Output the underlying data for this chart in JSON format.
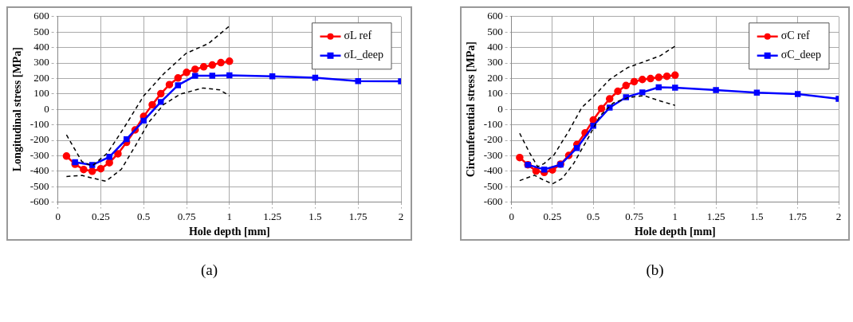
{
  "chart_data": [
    {
      "type": "line",
      "xlabel": "Hole depth [mm]",
      "ylabel": "Longitudinal stress [MPa]",
      "xlim": [
        0,
        2
      ],
      "xticks": [
        0,
        0.25,
        0.5,
        0.75,
        1,
        1.25,
        1.5,
        1.75,
        2
      ],
      "ylim": [
        -600,
        600
      ],
      "yticks": [
        -600,
        -500,
        -400,
        -300,
        -200,
        -100,
        0,
        100,
        200,
        300,
        400,
        500,
        600
      ],
      "grid": true,
      "legend": "top right",
      "annotations": [
        "(a)"
      ],
      "series": [
        {
          "name": "σL ref",
          "color": "#ff0000",
          "marker": "circle",
          "x": [
            0.05,
            0.1,
            0.15,
            0.2,
            0.25,
            0.3,
            0.35,
            0.4,
            0.45,
            0.5,
            0.55,
            0.6,
            0.65,
            0.7,
            0.75,
            0.8,
            0.85,
            0.9,
            0.95,
            1.0
          ],
          "values": [
            -302,
            -355,
            -389,
            -400,
            -384,
            -345,
            -287,
            -213,
            -133,
            -46,
            30,
            101,
            160,
            203,
            239,
            259,
            275,
            287,
            302,
            311
          ]
        },
        {
          "name": "σL_deep",
          "color": "#0000ff",
          "marker": "square",
          "x": [
            0.1,
            0.2,
            0.3,
            0.4,
            0.5,
            0.6,
            0.7,
            0.8,
            0.9,
            1.0,
            1.25,
            1.5,
            1.75,
            2.0
          ],
          "values": [
            -342,
            -360,
            -307,
            -193,
            -73,
            48,
            156,
            217,
            218,
            220,
            214,
            205,
            183,
            181
          ]
        },
        {
          "color": "#000000",
          "marker": "none",
          "line_style": "dashed",
          "x": [
            0.05,
            0.14,
            0.2,
            0.29,
            0.39,
            0.5,
            0.615,
            0.747,
            0.878,
            1.0
          ],
          "values": [
            -165,
            -338,
            -366,
            -281,
            -111,
            87,
            228,
            362,
            426,
            539
          ]
        },
        {
          "color": "#000000",
          "marker": "none",
          "line_style": "dashed",
          "x": [
            0.05,
            0.14,
            0.2,
            0.28,
            0.37,
            0.45,
            0.53,
            0.615,
            0.714,
            0.845,
            0.944,
            1.0
          ],
          "values": [
            -434,
            -427,
            -444,
            -465,
            -387,
            -239,
            -83,
            30,
            99,
            138,
            126,
            87
          ]
        }
      ]
    },
    {
      "type": "line",
      "xlabel": "Hole depth [mm]",
      "ylabel": "Circunferential stress [MPa]",
      "xlim": [
        0,
        2
      ],
      "xticks": [
        0,
        0.25,
        0.5,
        0.75,
        1,
        1.25,
        1.5,
        1.75,
        2
      ],
      "ylim": [
        -600,
        600
      ],
      "yticks": [
        -600,
        -500,
        -400,
        -300,
        -200,
        -100,
        0,
        100,
        200,
        300,
        400,
        500,
        600
      ],
      "grid": true,
      "legend": "top right",
      "annotations": [
        "(b)"
      ],
      "series": [
        {
          "name": "σC ref",
          "color": "#ff0000",
          "marker": "circle",
          "x": [
            0.05,
            0.1,
            0.15,
            0.2,
            0.25,
            0.3,
            0.35,
            0.4,
            0.45,
            0.5,
            0.55,
            0.6,
            0.65,
            0.7,
            0.75,
            0.8,
            0.85,
            0.9,
            0.95,
            1.0
          ],
          "values": [
            -312,
            -358,
            -399,
            -408,
            -392,
            -354,
            -298,
            -227,
            -152,
            -69,
            5,
            68,
            117,
            154,
            179,
            193,
            199,
            207,
            214,
            221
          ]
        },
        {
          "name": "σC_deep",
          "color": "#0000ff",
          "marker": "square",
          "x": [
            0.1,
            0.2,
            0.3,
            0.4,
            0.5,
            0.6,
            0.7,
            0.8,
            0.9,
            1.0,
            1.25,
            1.5,
            1.75,
            2.0
          ],
          "values": [
            -358,
            -389,
            -357,
            -250,
            -106,
            11,
            78,
            110,
            143,
            140,
            125,
            108,
            99,
            68
          ]
        },
        {
          "color": "#000000",
          "marker": "none",
          "line_style": "dashed",
          "x": [
            0.05,
            0.11,
            0.16,
            0.2,
            0.26,
            0.35,
            0.43,
            0.5,
            0.6,
            0.71,
            0.81,
            0.91,
            1.0
          ],
          "values": [
            -155,
            -280,
            -371,
            -350,
            -294,
            -141,
            12,
            82,
            193,
            270,
            308,
            347,
            409
          ]
        },
        {
          "color": "#000000",
          "marker": "none",
          "line_style": "dashed",
          "x": [
            0.05,
            0.14,
            0.19,
            0.25,
            0.31,
            0.38,
            0.47,
            0.54,
            0.62,
            0.71,
            0.81,
            0.91,
            1.0
          ],
          "values": [
            -461,
            -426,
            -454,
            -482,
            -447,
            -350,
            -183,
            -43,
            40,
            75,
            89,
            54,
            26
          ]
        }
      ]
    }
  ]
}
